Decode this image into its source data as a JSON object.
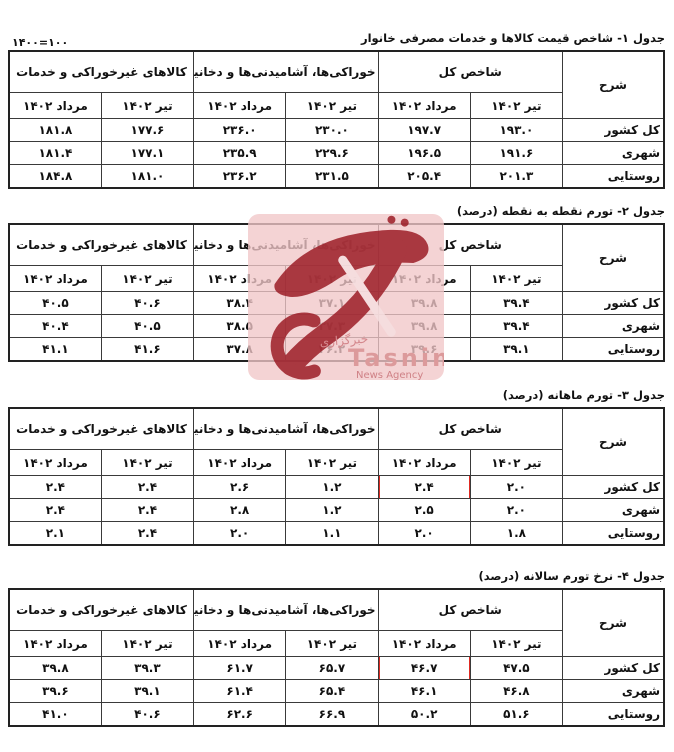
{
  "page": {
    "note": "۱۴۰۰=۱۰۰"
  },
  "columns": {
    "desc": "شرح",
    "groups": [
      "شاخص کل",
      "خوراکی‌ها، آشامیدنی‌ها و دخانیات",
      "کالاهای غیرخوراکی و خدمات"
    ],
    "sub": [
      "تیر ۱۴۰۲",
      "مرداد ۱۴۰۲"
    ]
  },
  "tables": [
    {
      "title": "جدول ۱- شاخص قیمت کالاها و خدمات مصرفی خانوار",
      "rows": [
        {
          "label": "کل کشور",
          "values": [
            "۱۹۳.۰",
            "۱۹۷.۷",
            "۲۳۰.۰",
            "۲۳۶.۰",
            "۱۷۷.۶",
            "۱۸۱.۸"
          ]
        },
        {
          "label": "شهری",
          "values": [
            "۱۹۱.۶",
            "۱۹۶.۵",
            "۲۲۹.۶",
            "۲۳۵.۹",
            "۱۷۷.۱",
            "۱۸۱.۴"
          ]
        },
        {
          "label": "روستایی",
          "values": [
            "۲۰۱.۳",
            "۲۰۵.۴",
            "۲۳۱.۵",
            "۲۳۶.۲",
            "۱۸۱.۰",
            "۱۸۴.۸"
          ]
        }
      ],
      "highlight": null
    },
    {
      "title": "جدول ۲- تورم نقطه به نقطه (درصد)",
      "rows": [
        {
          "label": "کل کشور",
          "values": [
            "۳۹.۴",
            "۳۹.۸",
            "۳۷.۱",
            "۳۸.۴",
            "۴۰.۶",
            "۴۰.۵"
          ]
        },
        {
          "label": "شهری",
          "values": [
            "۳۹.۴",
            "۳۹.۸",
            "۳۷.۳",
            "۳۸.۵",
            "۴۰.۵",
            "۴۰.۴"
          ]
        },
        {
          "label": "روستایی",
          "values": [
            "۳۹.۱",
            "۳۹.۶",
            "۳۶.۲",
            "۳۷.۸",
            "۴۱.۶",
            "۴۱.۱"
          ]
        }
      ],
      "highlight": null
    },
    {
      "title": "جدول ۳- تورم ماهانه (درصد)",
      "rows": [
        {
          "label": "کل کشور",
          "values": [
            "۲.۰",
            "۲.۴",
            "۱.۲",
            "۲.۶",
            "۲.۴",
            "۲.۴"
          ]
        },
        {
          "label": "شهری",
          "values": [
            "۲.۰",
            "۲.۵",
            "۱.۲",
            "۲.۸",
            "۲.۴",
            "۲.۴"
          ]
        },
        {
          "label": "روستایی",
          "values": [
            "۱.۸",
            "۲.۰",
            "۱.۱",
            "۲.۰",
            "۲.۴",
            "۲.۱"
          ]
        }
      ],
      "highlight": {
        "row": 0,
        "col": 1
      }
    },
    {
      "title": "جدول ۴- نرخ تورم سالانه (درصد)",
      "rows": [
        {
          "label": "کل کشور",
          "values": [
            "۴۷.۵",
            "۴۶.۷",
            "۶۵.۷",
            "۶۱.۷",
            "۳۹.۳",
            "۳۹.۸"
          ]
        },
        {
          "label": "شهری",
          "values": [
            "۴۶.۸",
            "۴۶.۱",
            "۶۵.۴",
            "۶۱.۴",
            "۳۹.۱",
            "۳۹.۶"
          ]
        },
        {
          "label": "روستایی",
          "values": [
            "۵۱.۶",
            "۵۰.۲",
            "۶۶.۹",
            "۶۲.۶",
            "۴۰.۶",
            "۴۱.۰"
          ]
        }
      ],
      "highlight": {
        "row": 0,
        "col": 1
      }
    }
  ],
  "watermark": {
    "label_fa": "خبرگزاری",
    "brand": "Tasnim",
    "brand_sub": "News Agency",
    "bg_color": "#f1c6c8",
    "fg_color": "#9c1d27"
  },
  "highlight_color": "#df2b23"
}
